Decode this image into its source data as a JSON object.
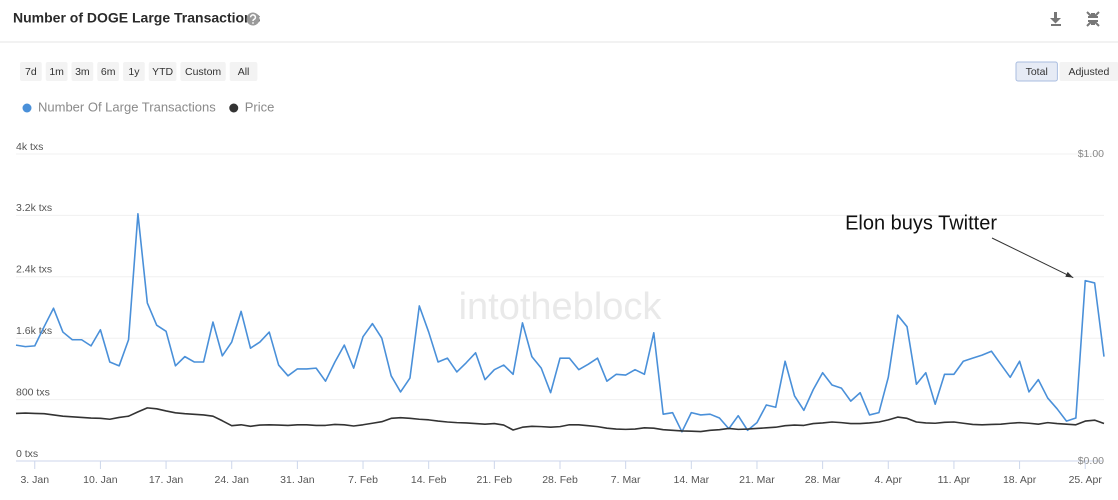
{
  "header": {
    "title": "Number of DOGE Large Transactions"
  },
  "toolbar": {
    "ranges": [
      "7d",
      "1m",
      "3m",
      "6m",
      "1y",
      "YTD",
      "Custom",
      "All"
    ],
    "modes": [
      "Total",
      "Adjusted"
    ],
    "active_mode": 0
  },
  "watermark": "intotheblock",
  "chart_data": {
    "type": "line",
    "categories": [
      null,
      null,
      "3. Jan",
      null,
      null,
      null,
      null,
      null,
      null,
      "10. Jan",
      null,
      null,
      null,
      null,
      null,
      null,
      "17. Jan",
      null,
      null,
      null,
      null,
      null,
      null,
      "24. Jan",
      null,
      null,
      null,
      null,
      null,
      null,
      "31. Jan",
      null,
      null,
      null,
      null,
      null,
      null,
      "7. Feb",
      null,
      null,
      null,
      null,
      null,
      null,
      "14. Feb",
      null,
      null,
      null,
      null,
      null,
      null,
      "21. Feb",
      null,
      null,
      null,
      null,
      null,
      null,
      "28. Feb",
      null,
      null,
      null,
      null,
      null,
      null,
      "7. Mar",
      null,
      null,
      null,
      null,
      null,
      null,
      "14. Mar",
      null,
      null,
      null,
      null,
      null,
      null,
      "21. Mar",
      null,
      null,
      null,
      null,
      null,
      null,
      "28. Mar",
      null,
      null,
      null,
      null,
      null,
      null,
      "4. Apr",
      null,
      null,
      null,
      null,
      null,
      null,
      "11. Apr",
      null,
      null,
      null,
      null,
      null,
      null,
      "18. Apr",
      null,
      null,
      null,
      null,
      null,
      null,
      "25. Apr",
      null,
      null
    ],
    "series": [
      {
        "name": "Number Of Large Transactions",
        "color": "#4a90d9",
        "axis": "y",
        "values": [
          1510,
          1490,
          1500,
          1750,
          1990,
          1680,
          1580,
          1580,
          1500,
          1710,
          1290,
          1240,
          1580,
          3220,
          2060,
          1770,
          1690,
          1240,
          1360,
          1290,
          1290,
          1810,
          1370,
          1550,
          1950,
          1470,
          1550,
          1680,
          1250,
          1110,
          1200,
          1200,
          1210,
          1040,
          1290,
          1510,
          1210,
          1620,
          1790,
          1600,
          1110,
          900,
          1080,
          2020,
          1680,
          1290,
          1340,
          1160,
          1280,
          1410,
          1060,
          1190,
          1250,
          1130,
          1800,
          1360,
          1210,
          890,
          1340,
          1340,
          1190,
          1260,
          1340,
          1040,
          1130,
          1120,
          1190,
          1130,
          1670,
          610,
          630,
          380,
          630,
          600,
          610,
          560,
          420,
          590,
          400,
          500,
          730,
          700,
          1300,
          850,
          660,
          930,
          1150,
          990,
          950,
          780,
          890,
          600,
          630,
          1090,
          1900,
          1750,
          1000,
          1150,
          740,
          1130,
          1130,
          1300,
          1340,
          1380,
          1430,
          1260,
          1090,
          1300,
          900,
          1060,
          820,
          680,
          520,
          560,
          2350,
          2320,
          1360
        ]
      },
      {
        "name": "Price",
        "color": "#333333",
        "axis": "y2",
        "values": [
          0.155,
          0.156,
          0.155,
          0.154,
          0.15,
          0.146,
          0.144,
          0.142,
          0.14,
          0.139,
          0.136,
          0.142,
          0.146,
          0.16,
          0.173,
          0.17,
          0.163,
          0.157,
          0.154,
          0.152,
          0.15,
          0.146,
          0.131,
          0.115,
          0.118,
          0.113,
          0.117,
          0.118,
          0.117,
          0.116,
          0.118,
          0.118,
          0.116,
          0.116,
          0.119,
          0.118,
          0.114,
          0.118,
          0.123,
          0.128,
          0.139,
          0.141,
          0.139,
          0.136,
          0.134,
          0.13,
          0.127,
          0.125,
          0.124,
          0.122,
          0.12,
          0.122,
          0.117,
          0.101,
          0.11,
          0.113,
          0.112,
          0.11,
          0.112,
          0.118,
          0.118,
          0.115,
          0.112,
          0.107,
          0.104,
          0.103,
          0.104,
          0.108,
          0.107,
          0.102,
          0.1,
          0.098,
          0.097,
          0.096,
          0.1,
          0.102,
          0.106,
          0.103,
          0.104,
          0.106,
          0.108,
          0.11,
          0.115,
          0.117,
          0.116,
          0.122,
          0.124,
          0.127,
          0.125,
          0.122,
          0.122,
          0.124,
          0.127,
          0.134,
          0.143,
          0.139,
          0.127,
          0.124,
          0.123,
          0.126,
          0.127,
          0.123,
          0.119,
          0.118,
          0.119,
          0.12,
          0.123,
          0.125,
          0.123,
          0.12,
          0.125,
          0.122,
          0.12,
          0.118,
          0.13,
          0.133,
          0.122
        ]
      }
    ],
    "ylim": [
      0,
      4000
    ],
    "yticks": [
      {
        "value": 0,
        "label": "0 txs"
      },
      {
        "value": 800,
        "label": "800 txs"
      },
      {
        "value": 1600,
        "label": "1.6k txs"
      },
      {
        "value": 2400,
        "label": "2.4k txs"
      },
      {
        "value": 3200,
        "label": "3.2k txs"
      },
      {
        "value": 4000,
        "label": "4k txs"
      }
    ],
    "y2lim": [
      0,
      1
    ],
    "y2ticks": [
      {
        "value": 0,
        "label": "$0.00"
      },
      {
        "value": 1,
        "label": "$1.00"
      }
    ],
    "grid": true,
    "legend": "top-left",
    "annotation": {
      "text": "Elon buys Twitter",
      "index": 114
    }
  }
}
